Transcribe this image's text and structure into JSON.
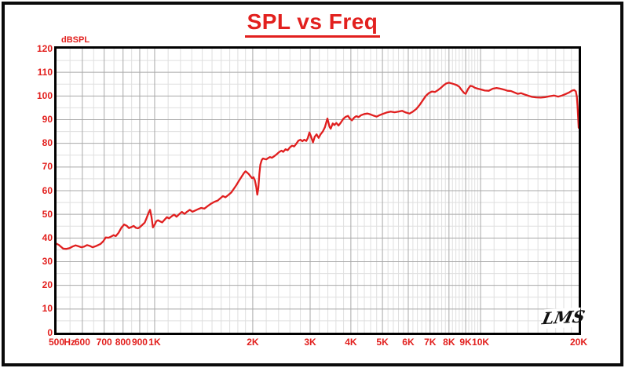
{
  "title": {
    "text": "SPL vs Freq"
  },
  "colors": {
    "accent_red": "#e2201e",
    "curve_red": "#e01f1f",
    "grid_minor": "#dfdfdf",
    "grid_major": "#a8a8a8",
    "axis_black": "#000000"
  },
  "y_axis": {
    "unit_label": "dBSPL",
    "ticks": [
      120,
      110,
      100,
      90,
      80,
      70,
      60,
      50,
      40,
      30,
      20,
      10,
      0
    ]
  },
  "x_axis": {
    "unit_label": "Hz",
    "ticks": [
      {
        "f": 500,
        "label": "500"
      },
      {
        "f": 600,
        "label": "600"
      },
      {
        "f": 700,
        "label": "700"
      },
      {
        "f": 800,
        "label": "800"
      },
      {
        "f": 900,
        "label": "900"
      },
      {
        "f": 1000,
        "label": "1K"
      },
      {
        "f": 2000,
        "label": "2K"
      },
      {
        "f": 3000,
        "label": "3K"
      },
      {
        "f": 4000,
        "label": "4K"
      },
      {
        "f": 5000,
        "label": "5K"
      },
      {
        "f": 6000,
        "label": "6K"
      },
      {
        "f": 7000,
        "label": "7K"
      },
      {
        "f": 8000,
        "label": "8K"
      },
      {
        "f": 9000,
        "label": "9K"
      },
      {
        "f": 10000,
        "label": "10K"
      },
      {
        "f": 20000,
        "label": "20K"
      }
    ]
  },
  "logo": {
    "text": "LMS"
  },
  "chart_data": {
    "type": "line",
    "title": "SPL vs Freq",
    "xlabel": "Hz",
    "ylabel": "dBSPL",
    "xscale": "log",
    "xlim": [
      500,
      20000
    ],
    "ylim": [
      0,
      120
    ],
    "y_major_step": 10,
    "y_minor_step": 5,
    "grid": "on",
    "legend": "none",
    "series": [
      {
        "name": "SPL",
        "points": [
          [
            500,
            37.6
          ],
          [
            508,
            37.1
          ],
          [
            516,
            36.3
          ],
          [
            524,
            35.5
          ],
          [
            535,
            35.4
          ],
          [
            548,
            35.7
          ],
          [
            560,
            36.4
          ],
          [
            572,
            36.9
          ],
          [
            584,
            36.5
          ],
          [
            596,
            36.1
          ],
          [
            608,
            36.4
          ],
          [
            620,
            37.0
          ],
          [
            632,
            36.7
          ],
          [
            645,
            36.1
          ],
          [
            658,
            36.5
          ],
          [
            670,
            37.0
          ],
          [
            682,
            37.5
          ],
          [
            695,
            38.6
          ],
          [
            708,
            40.2
          ],
          [
            722,
            40.1
          ],
          [
            735,
            40.6
          ],
          [
            748,
            41.2
          ],
          [
            760,
            40.8
          ],
          [
            775,
            42.2
          ],
          [
            790,
            44.3
          ],
          [
            806,
            45.7
          ],
          [
            820,
            45.2
          ],
          [
            834,
            44.2
          ],
          [
            848,
            44.6
          ],
          [
            862,
            45.1
          ],
          [
            876,
            44.3
          ],
          [
            890,
            44.1
          ],
          [
            904,
            44.8
          ],
          [
            918,
            45.6
          ],
          [
            932,
            46.5
          ],
          [
            945,
            48.5
          ],
          [
            958,
            50.6
          ],
          [
            968,
            51.9
          ],
          [
            978,
            49.0
          ],
          [
            988,
            44.5
          ],
          [
            1000,
            45.6
          ],
          [
            1012,
            47.1
          ],
          [
            1025,
            47.5
          ],
          [
            1040,
            47.0
          ],
          [
            1055,
            46.6
          ],
          [
            1072,
            47.7
          ],
          [
            1090,
            48.8
          ],
          [
            1108,
            48.3
          ],
          [
            1128,
            49.2
          ],
          [
            1148,
            49.9
          ],
          [
            1168,
            49.0
          ],
          [
            1190,
            50.1
          ],
          [
            1212,
            51.0
          ],
          [
            1235,
            50.2
          ],
          [
            1258,
            51.1
          ],
          [
            1282,
            51.9
          ],
          [
            1306,
            51.1
          ],
          [
            1332,
            51.6
          ],
          [
            1360,
            52.2
          ],
          [
            1390,
            52.7
          ],
          [
            1420,
            52.4
          ],
          [
            1455,
            53.5
          ],
          [
            1490,
            54.5
          ],
          [
            1525,
            55.3
          ],
          [
            1560,
            55.8
          ],
          [
            1590,
            56.8
          ],
          [
            1620,
            57.7
          ],
          [
            1650,
            57.2
          ],
          [
            1685,
            58.2
          ],
          [
            1720,
            59.3
          ],
          [
            1750,
            60.8
          ],
          [
            1780,
            62.3
          ],
          [
            1815,
            64.2
          ],
          [
            1850,
            66.0
          ],
          [
            1880,
            67.5
          ],
          [
            1900,
            68.2
          ],
          [
            1920,
            67.7
          ],
          [
            1945,
            67.0
          ],
          [
            1970,
            66.0
          ],
          [
            1990,
            65.3
          ],
          [
            2010,
            65.7
          ],
          [
            2030,
            64.4
          ],
          [
            2050,
            61.5
          ],
          [
            2065,
            58.3
          ],
          [
            2080,
            61.0
          ],
          [
            2095,
            67.0
          ],
          [
            2110,
            71.0
          ],
          [
            2130,
            72.9
          ],
          [
            2150,
            73.6
          ],
          [
            2175,
            73.4
          ],
          [
            2200,
            73.2
          ],
          [
            2230,
            73.8
          ],
          [
            2260,
            74.2
          ],
          [
            2290,
            73.9
          ],
          [
            2330,
            74.6
          ],
          [
            2370,
            75.4
          ],
          [
            2410,
            76.3
          ],
          [
            2450,
            76.9
          ],
          [
            2480,
            76.4
          ],
          [
            2520,
            77.5
          ],
          [
            2560,
            77.1
          ],
          [
            2600,
            78.3
          ],
          [
            2640,
            79.0
          ],
          [
            2680,
            78.7
          ],
          [
            2720,
            79.8
          ],
          [
            2760,
            81.1
          ],
          [
            2800,
            81.5
          ],
          [
            2840,
            80.9
          ],
          [
            2880,
            81.5
          ],
          [
            2920,
            81.0
          ],
          [
            2950,
            82.2
          ],
          [
            2985,
            84.6
          ],
          [
            3020,
            82.8
          ],
          [
            3060,
            80.4
          ],
          [
            3100,
            82.8
          ],
          [
            3140,
            83.8
          ],
          [
            3185,
            82.3
          ],
          [
            3230,
            83.8
          ],
          [
            3280,
            85.0
          ],
          [
            3330,
            86.8
          ],
          [
            3390,
            90.5
          ],
          [
            3440,
            87.0
          ],
          [
            3470,
            86.2
          ],
          [
            3520,
            88.4
          ],
          [
            3560,
            87.7
          ],
          [
            3610,
            88.6
          ],
          [
            3665,
            87.5
          ],
          [
            3725,
            88.7
          ],
          [
            3790,
            90.3
          ],
          [
            3855,
            91.2
          ],
          [
            3920,
            91.6
          ],
          [
            3975,
            90.4
          ],
          [
            4030,
            89.7
          ],
          [
            4090,
            90.8
          ],
          [
            4155,
            91.5
          ],
          [
            4225,
            91.1
          ],
          [
            4300,
            91.9
          ],
          [
            4400,
            92.4
          ],
          [
            4500,
            92.6
          ],
          [
            4600,
            92.2
          ],
          [
            4700,
            91.7
          ],
          [
            4800,
            91.3
          ],
          [
            4900,
            91.9
          ],
          [
            5000,
            92.4
          ],
          [
            5150,
            93.0
          ],
          [
            5300,
            93.4
          ],
          [
            5450,
            93.1
          ],
          [
            5600,
            93.4
          ],
          [
            5750,
            93.7
          ],
          [
            5900,
            93.0
          ],
          [
            6050,
            92.6
          ],
          [
            6200,
            93.4
          ],
          [
            6350,
            94.5
          ],
          [
            6500,
            96.2
          ],
          [
            6650,
            98.2
          ],
          [
            6800,
            100.1
          ],
          [
            6950,
            101.3
          ],
          [
            7100,
            101.9
          ],
          [
            7250,
            101.7
          ],
          [
            7400,
            102.5
          ],
          [
            7550,
            103.4
          ],
          [
            7700,
            104.5
          ],
          [
            7850,
            105.3
          ],
          [
            8000,
            105.6
          ],
          [
            8150,
            105.3
          ],
          [
            8300,
            105.0
          ],
          [
            8450,
            104.6
          ],
          [
            8600,
            103.9
          ],
          [
            8750,
            102.5
          ],
          [
            8900,
            101.3
          ],
          [
            9000,
            100.9
          ],
          [
            9150,
            102.9
          ],
          [
            9300,
            104.3
          ],
          [
            9450,
            104.1
          ],
          [
            9600,
            103.5
          ],
          [
            9800,
            103.1
          ],
          [
            10000,
            102.8
          ],
          [
            10300,
            102.3
          ],
          [
            10600,
            102.2
          ],
          [
            10900,
            103.1
          ],
          [
            11200,
            103.4
          ],
          [
            11500,
            103.1
          ],
          [
            11800,
            102.7
          ],
          [
            12100,
            102.2
          ],
          [
            12400,
            102.1
          ],
          [
            12700,
            101.5
          ],
          [
            13000,
            100.9
          ],
          [
            13300,
            101.2
          ],
          [
            13600,
            100.7
          ],
          [
            14000,
            100.1
          ],
          [
            14400,
            99.6
          ],
          [
            14800,
            99.4
          ],
          [
            15300,
            99.3
          ],
          [
            15800,
            99.5
          ],
          [
            16300,
            99.9
          ],
          [
            16800,
            100.2
          ],
          [
            17300,
            99.7
          ],
          [
            17800,
            100.2
          ],
          [
            18300,
            100.9
          ],
          [
            18700,
            101.5
          ],
          [
            19100,
            102.3
          ],
          [
            19400,
            102.5
          ],
          [
            19600,
            101.9
          ],
          [
            19750,
            99.6
          ],
          [
            19850,
            95.5
          ],
          [
            19930,
            90.5
          ],
          [
            20000,
            86.6
          ]
        ]
      }
    ]
  }
}
